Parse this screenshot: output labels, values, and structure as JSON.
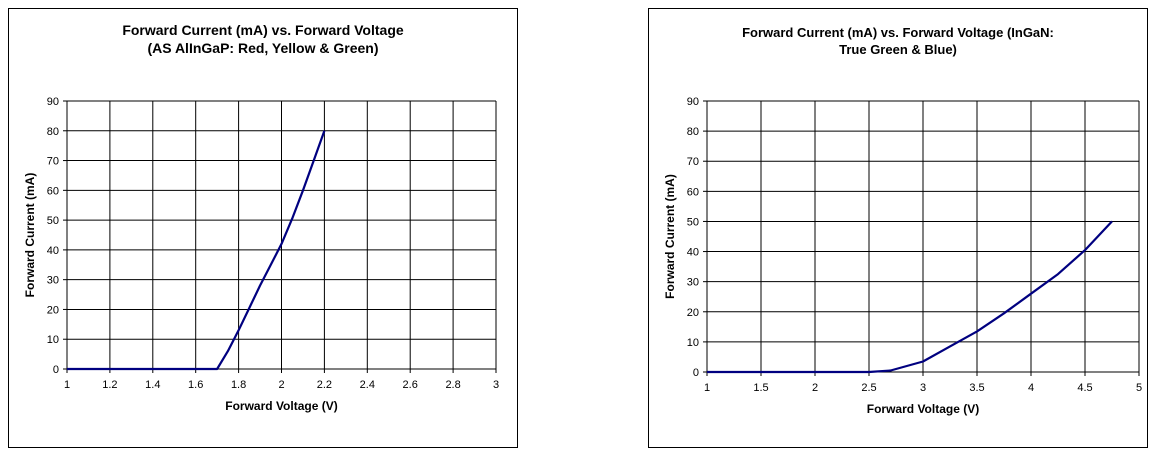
{
  "chart_data": [
    {
      "type": "line",
      "title_line1": "Forward Current (mA) vs. Forward Voltage",
      "title_line2": "(AS AlInGaP: Red, Yellow & Green)",
      "xlabel": "Forward Voltage (V)",
      "ylabel": "Forward Current (mA)",
      "xlim": [
        1,
        3
      ],
      "ylim": [
        0,
        90
      ],
      "xticks": [
        "1",
        "1.2",
        "1.4",
        "1.6",
        "1.8",
        "2",
        "2.2",
        "2.4",
        "2.6",
        "2.8",
        "3"
      ],
      "yticks": [
        "0",
        "10",
        "20",
        "30",
        "40",
        "50",
        "60",
        "70",
        "80",
        "90"
      ],
      "grid": true,
      "series": [
        {
          "color": "#000080",
          "x": [
            1.0,
            1.2,
            1.4,
            1.6,
            1.7,
            1.75,
            1.8,
            1.85,
            1.9,
            1.95,
            2.0,
            2.05,
            2.1,
            2.15,
            2.2
          ],
          "y": [
            0,
            0,
            0,
            0,
            0,
            6,
            13,
            20.5,
            28,
            35,
            42,
            50.5,
            60,
            70,
            80
          ]
        }
      ]
    },
    {
      "type": "line",
      "title_line1": "Forward Current (mA) vs. Forward Voltage (InGaN:",
      "title_line2": "True Green & Blue)",
      "xlabel": "Forward Voltage (V)",
      "ylabel": "Forward Current (mA)",
      "xlim": [
        1,
        5
      ],
      "ylim": [
        0,
        90
      ],
      "xticks": [
        "1",
        "1.5",
        "2",
        "2.5",
        "3",
        "3.5",
        "4",
        "4.5",
        "5"
      ],
      "yticks": [
        "0",
        "10",
        "20",
        "30",
        "40",
        "50",
        "60",
        "70",
        "80",
        "90"
      ],
      "grid": true,
      "series": [
        {
          "color": "#000080",
          "x": [
            1.0,
            1.5,
            2.0,
            2.5,
            2.7,
            2.8,
            3.0,
            3.25,
            3.5,
            3.75,
            4.0,
            4.25,
            4.5,
            4.75
          ],
          "y": [
            0,
            0,
            0,
            0,
            0.5,
            1.5,
            3.5,
            8.5,
            13.5,
            19.5,
            26,
            32.5,
            40.5,
            50
          ]
        }
      ]
    }
  ]
}
